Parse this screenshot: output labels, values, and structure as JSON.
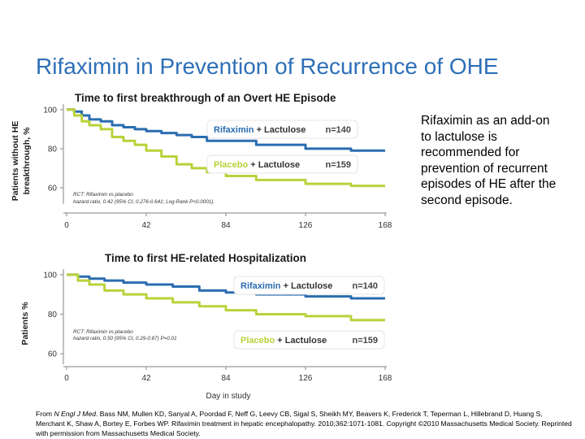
{
  "title": "Rifaximin in Prevention of Recurrence of OHE",
  "side_text": "Rifaximin as an add-on to lactulose is recommended for prevention of recurrent episodes of HE after the second episode.",
  "citation": {
    "prefix": "From ",
    "journal": "N Engl J Med",
    "rest": ". Bass NM, Mullen KD, Sanyal A, Poordad F, Neff G, Leevy CB, Sigal S, Sheikh MY, Beavers K, Frederick T, Teperman L, Hillebrand D, Huang S, Merchant K, Shaw A, Bortey E, Forbes WP. Rifaximin treatment in hepatic encephalopathy. 2010;362:1071-1081. Copyright ©2010 Massachusetts Medical Society. Reprinted with permission from Massachusetts Medical Society."
  },
  "colors": {
    "rifaximin": "#2a6db0",
    "placebo": "#b9d23a",
    "title": "#2e6fb7"
  },
  "chart_data": [
    {
      "type": "line",
      "title": "Time to first breakthrough of an Overt HE Episode",
      "ylabel_line1": "Patients without HE",
      "ylabel_line2": "breakthrough, %",
      "xlabel": "",
      "xlim": [
        0,
        168
      ],
      "ylim": [
        55,
        102
      ],
      "x_ticks": [
        0,
        42,
        84,
        126,
        168
      ],
      "y_ticks": [
        60,
        80,
        100
      ],
      "legend": {
        "rifaximin_name": "Rifaximin",
        "rifaximin_suffix": " + Lactulose",
        "rifaximin_n": "n=140",
        "placebo_name": "Placebo",
        "placebo_suffix": " + Lactulose",
        "placebo_n": "n=159"
      },
      "annotation_line1": "RCT: Rifaximin vs placebo",
      "annotation_line2": "hazard ratio, 0.42 (95% CI, 0.276-0.641; Log-Rank P<0.0001).",
      "series": [
        {
          "name": "Rifaximin + Lactulose",
          "x": [
            0,
            4,
            8,
            12,
            18,
            24,
            30,
            36,
            42,
            50,
            58,
            66,
            74,
            84,
            100,
            126,
            150,
            168
          ],
          "values": [
            100,
            99,
            97,
            95,
            94,
            92,
            91,
            90,
            89,
            88,
            87,
            86,
            84,
            84,
            82,
            80,
            79,
            79
          ]
        },
        {
          "name": "Placebo + Lactulose",
          "x": [
            0,
            4,
            8,
            12,
            18,
            24,
            30,
            36,
            42,
            50,
            58,
            66,
            74,
            84,
            100,
            126,
            150,
            168
          ],
          "values": [
            100,
            97,
            94,
            92,
            90,
            86,
            84,
            82,
            79,
            76,
            72,
            70,
            68,
            66,
            64,
            62,
            61,
            61
          ]
        }
      ]
    },
    {
      "type": "line",
      "title": "Time to first HE-related Hospitalization",
      "ylabel_line1": "Patients %",
      "ylabel_line2": "",
      "xlabel": "Day in study",
      "xlim": [
        0,
        168
      ],
      "ylim": [
        58,
        102
      ],
      "x_ticks": [
        0,
        42,
        84,
        126,
        168
      ],
      "y_ticks": [
        60,
        80,
        100
      ],
      "legend": {
        "rifaximin_name": "Rifaximin",
        "rifaximin_suffix": " + Lactulose",
        "rifaximin_n": "n=140",
        "placebo_name": "Placebo",
        "placebo_suffix": " + Lactulose",
        "placebo_n": "n=159"
      },
      "annotation_line1": "RCT: Rifaximin vs placebo",
      "annotation_line2": "hazard ratio, 0.50 (95% CI, 0.29-0.87) P=0.01",
      "series": [
        {
          "name": "Rifaximin + Lactulose",
          "x": [
            0,
            6,
            12,
            20,
            30,
            42,
            56,
            70,
            84,
            100,
            126,
            150,
            168
          ],
          "values": [
            100,
            99,
            98,
            97,
            96,
            95,
            94,
            92,
            91,
            90,
            89,
            88,
            88
          ]
        },
        {
          "name": "Placebo + Lactulose",
          "x": [
            0,
            6,
            12,
            20,
            30,
            42,
            56,
            70,
            84,
            100,
            126,
            150,
            168
          ],
          "values": [
            100,
            97,
            95,
            92,
            90,
            88,
            86,
            84,
            82,
            80,
            79,
            77,
            77
          ]
        }
      ]
    }
  ]
}
